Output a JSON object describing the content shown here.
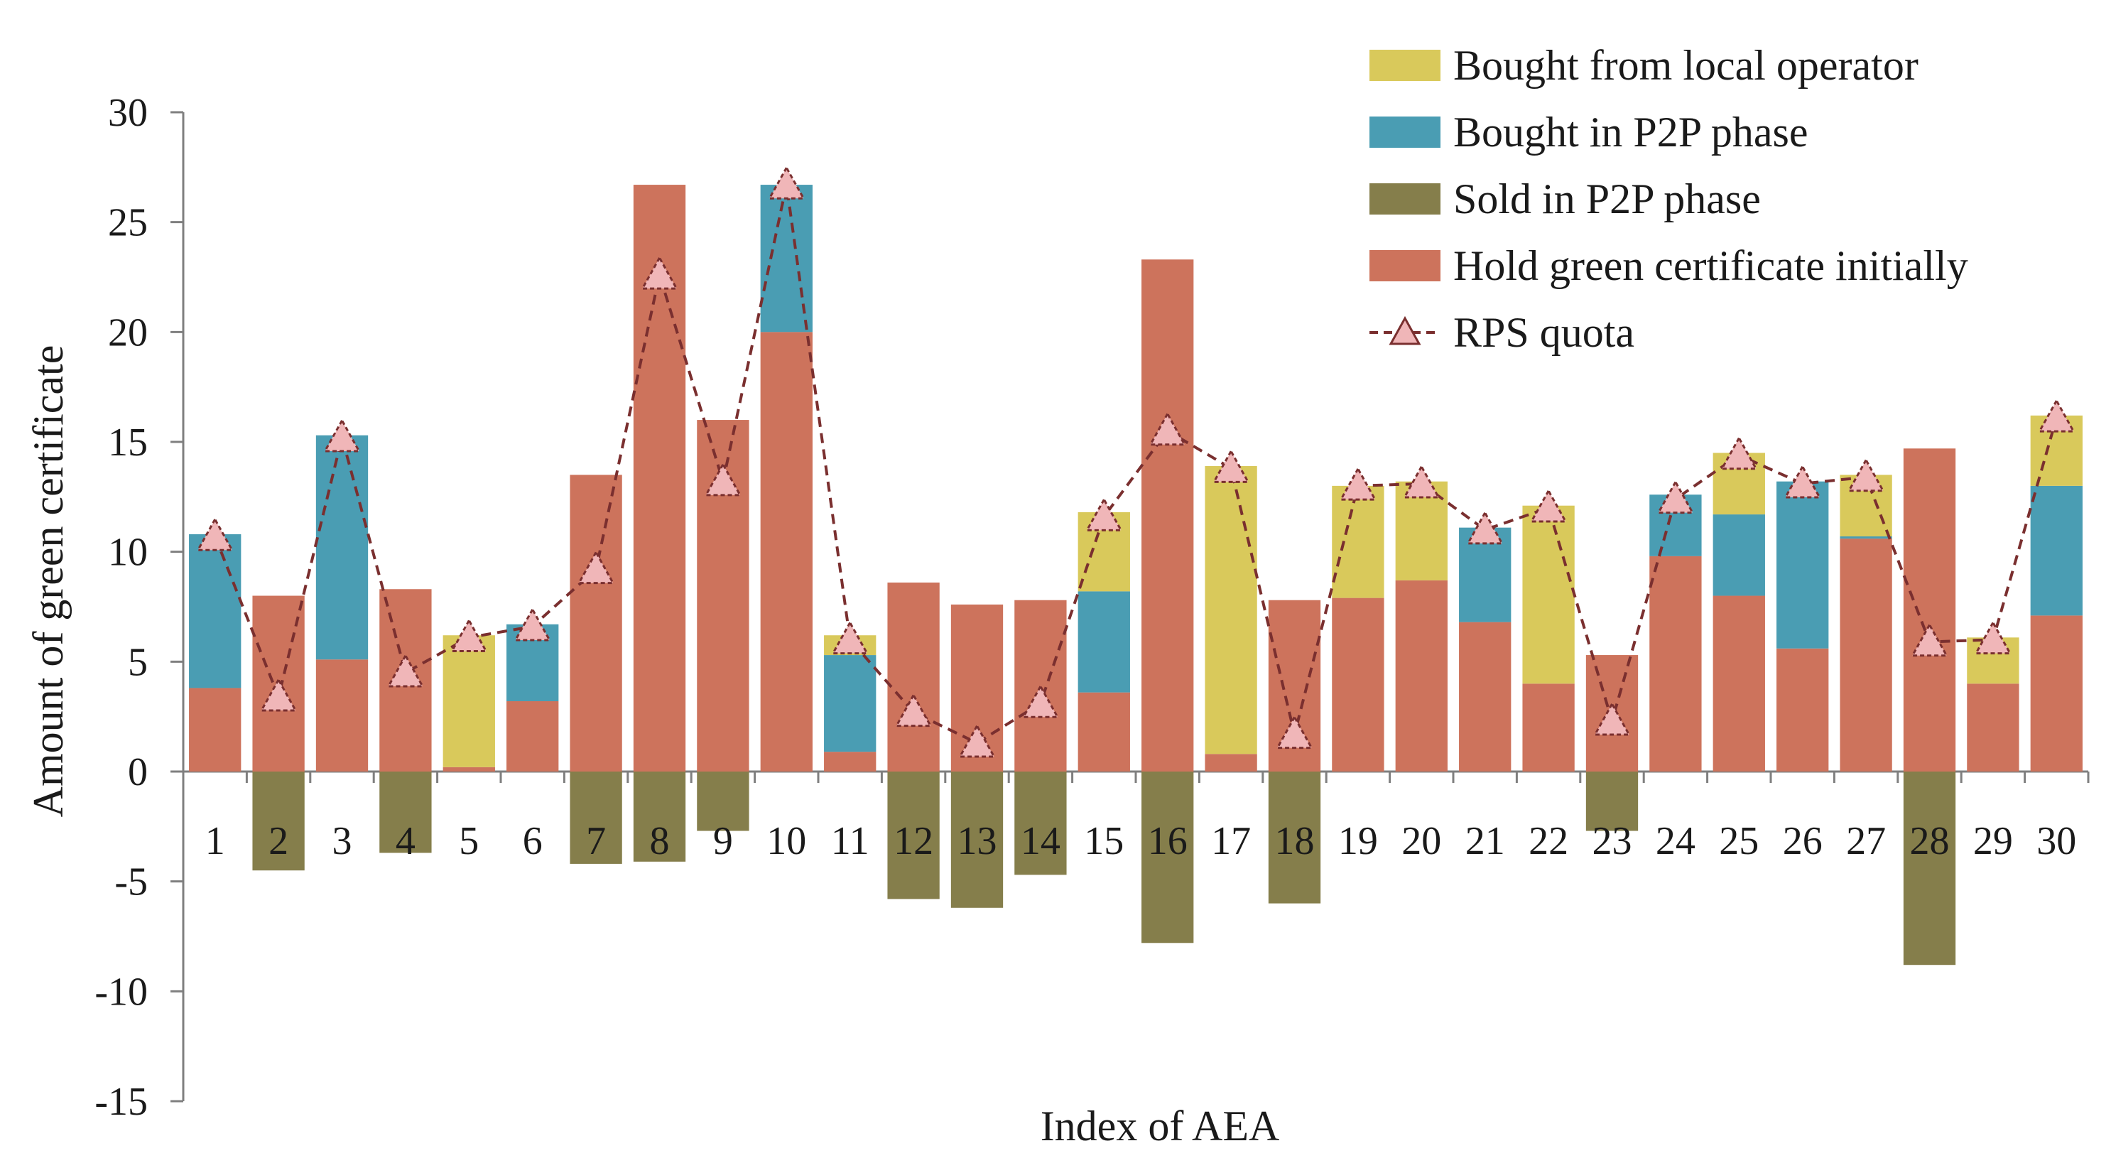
{
  "chart_data": {
    "type": "bar",
    "stacked": true,
    "title": "",
    "xlabel": "Index of AEA",
    "ylabel": "Amount of green certificate",
    "ylim": [
      -15,
      30
    ],
    "yticks": [
      30,
      25,
      20,
      15,
      10,
      5,
      0,
      -5,
      -10,
      -15
    ],
    "grid": false,
    "legend_position": "top-right",
    "categories": [
      "1",
      "2",
      "3",
      "4",
      "5",
      "6",
      "7",
      "8",
      "9",
      "10",
      "11",
      "12",
      "13",
      "14",
      "15",
      "16",
      "17",
      "18",
      "19",
      "20",
      "21",
      "22",
      "23",
      "24",
      "25",
      "26",
      "27",
      "28",
      "29",
      "30"
    ],
    "series": [
      {
        "name": "Hold green certificate initially",
        "kind": "bar",
        "color": "#CD735C",
        "values": [
          3.8,
          8.0,
          5.1,
          8.3,
          0.2,
          3.2,
          13.5,
          26.7,
          16.0,
          20.0,
          0.9,
          8.6,
          7.6,
          7.8,
          3.6,
          23.3,
          0.8,
          7.8,
          7.9,
          8.7,
          6.8,
          4.0,
          5.3,
          9.8,
          8.0,
          5.6,
          10.6,
          14.7,
          4.0,
          7.1
        ]
      },
      {
        "name": "Bought in P2P phase",
        "kind": "bar",
        "color": "#4A9DB3",
        "values": [
          7.0,
          0,
          10.2,
          0,
          0,
          3.5,
          0,
          0,
          0,
          6.7,
          4.4,
          0,
          0,
          0,
          4.6,
          0,
          0,
          0,
          0,
          0,
          4.3,
          0,
          0,
          2.8,
          3.7,
          7.6,
          0.1,
          0,
          0,
          5.9
        ]
      },
      {
        "name": "Bought from local operator",
        "kind": "bar",
        "color": "#D9C95B",
        "values": [
          0,
          0,
          0,
          0,
          6.0,
          0,
          0,
          0,
          0,
          0,
          0.9,
          0,
          0,
          0,
          3.6,
          0,
          13.1,
          0,
          5.1,
          4.5,
          0,
          8.1,
          0,
          0,
          2.8,
          0,
          2.8,
          0,
          2.1,
          3.2
        ]
      },
      {
        "name": "Sold in P2P phase",
        "kind": "bar",
        "color": "#857E4B",
        "values": [
          0,
          -4.5,
          0,
          -3.7,
          0,
          0,
          -4.2,
          -4.1,
          -2.7,
          0,
          0,
          -5.8,
          -6.2,
          -4.7,
          0,
          -7.8,
          0,
          -6.0,
          0,
          0,
          0,
          0,
          -2.7,
          0,
          0,
          0,
          0,
          -8.8,
          0,
          0
        ]
      },
      {
        "name": "RPS quota",
        "kind": "line",
        "color": "#7A2F2F",
        "marker_color": "#F0B6B8",
        "values": [
          10.7,
          3.4,
          15.2,
          4.5,
          6.1,
          6.6,
          9.2,
          22.6,
          13.2,
          26.7,
          6.0,
          2.7,
          1.3,
          3.1,
          11.6,
          15.5,
          13.8,
          1.7,
          13.0,
          13.1,
          11.0,
          12.0,
          2.3,
          12.4,
          14.4,
          13.1,
          13.4,
          5.9,
          6.0,
          16.1
        ]
      }
    ]
  },
  "legend": [
    {
      "label": "Bought from local operator",
      "color": "#D9C95B",
      "kind": "bar"
    },
    {
      "label": "Bought in P2P phase",
      "color": "#4A9DB3",
      "kind": "bar"
    },
    {
      "label": "Sold in P2P phase",
      "color": "#857E4B",
      "kind": "bar"
    },
    {
      "label": "Hold green certificate initially",
      "color": "#CD735C",
      "kind": "bar"
    },
    {
      "label": "RPS quota",
      "color": "#7A2F2F",
      "kind": "line"
    }
  ]
}
